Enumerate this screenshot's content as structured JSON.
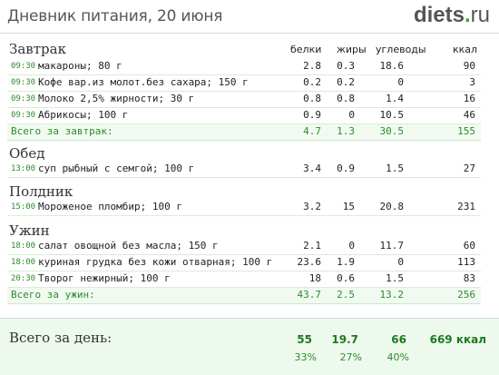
{
  "header": {
    "title": "Дневник питания, 20 июня",
    "logo_main": "diets",
    "logo_dot": ".",
    "logo_tld": "ru"
  },
  "columns": {
    "protein": "белки",
    "fat": "жиры",
    "carbs": "углеводы",
    "kcal": "ккал"
  },
  "meals": [
    {
      "title": "Завтрак",
      "items": [
        {
          "time": "09:30",
          "name": "макароны; 80 г",
          "protein": "2.8",
          "fat": "0.3",
          "carbs": "18.6",
          "kcal": "90"
        },
        {
          "time": "09:30",
          "name": "Кофе вар.из молот.без сахара; 150 г",
          "protein": "0.2",
          "fat": "0.2",
          "carbs": "0",
          "kcal": "3"
        },
        {
          "time": "09:30",
          "name": "Молоко 2,5% жирности; 30 г",
          "protein": "0.8",
          "fat": "0.8",
          "carbs": "1.4",
          "kcal": "16"
        },
        {
          "time": "09:30",
          "name": "Абрикосы; 100 г",
          "protein": "0.9",
          "fat": "0",
          "carbs": "10.5",
          "kcal": "46"
        }
      ],
      "total": {
        "label": "Всего за завтрак:",
        "protein": "4.7",
        "fat": "1.3",
        "carbs": "30.5",
        "kcal": "155"
      }
    },
    {
      "title": "Обед",
      "items": [
        {
          "time": "13:00",
          "name": "суп рыбный с семгой; 100 г",
          "protein": "3.4",
          "fat": "0.9",
          "carbs": "1.5",
          "kcal": "27"
        }
      ]
    },
    {
      "title": "Полдник",
      "items": [
        {
          "time": "15:00",
          "name": "Мороженое пломбир; 100 г",
          "protein": "3.2",
          "fat": "15",
          "carbs": "20.8",
          "kcal": "231"
        }
      ]
    },
    {
      "title": "Ужин",
      "items": [
        {
          "time": "18:00",
          "name": "салат овощной без масла; 150 г",
          "protein": "2.1",
          "fat": "0",
          "carbs": "11.7",
          "kcal": "60"
        },
        {
          "time": "18:00",
          "name": "куриная грудка без кожи отварная; 100 г",
          "protein": "23.6",
          "fat": "1.9",
          "carbs": "0",
          "kcal": "113"
        },
        {
          "time": "20:30",
          "name": "Творог нежирный; 100 г",
          "protein": "18",
          "fat": "0.6",
          "carbs": "1.5",
          "kcal": "83"
        }
      ],
      "total": {
        "label": "Всего за ужин:",
        "protein": "43.7",
        "fat": "2.5",
        "carbs": "13.2",
        "kcal": "256"
      }
    }
  ],
  "day_total": {
    "label": "Всего за день:",
    "protein": "55",
    "fat": "19.7",
    "carbs": "66",
    "kcal": "669 ккал",
    "protein_pct": "33%",
    "fat_pct": "27%",
    "carbs_pct": "40%"
  }
}
